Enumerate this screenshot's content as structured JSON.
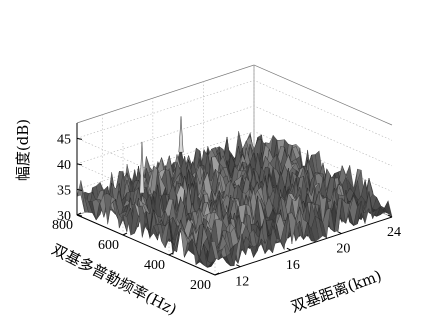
{
  "chart_data": {
    "type": "surface",
    "zlabel": "幅度(dB)",
    "ylabel": "双基多普勒频率(Hz)",
    "xlabel": "双基距离(km)",
    "zlim": [
      30,
      48
    ],
    "z_ticks": [
      30,
      35,
      40,
      45
    ],
    "y_ticks": [
      800,
      600,
      400,
      200
    ],
    "x_ticks": [
      12,
      16,
      20,
      24
    ],
    "xlim": [
      10,
      24
    ],
    "ylim": [
      200,
      800
    ],
    "grid": true,
    "colormap": "gray",
    "noise_floor_db": [
      30,
      37
    ],
    "central_hump_peak_db": 39,
    "peaks": [
      {
        "range_km": 11.5,
        "doppler_hz": 600,
        "amplitude_db": 47
      },
      {
        "range_km": 17.5,
        "doppler_hz": 760,
        "amplitude_db": 44
      }
    ]
  }
}
